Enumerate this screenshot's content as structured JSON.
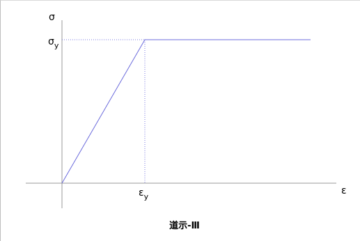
{
  "chart_data": {
    "type": "line",
    "title": "",
    "xlabel": "ε",
    "ylabel": "σ",
    "xlim": [
      0,
      3
    ],
    "ylim": [
      0,
      1
    ],
    "series": [
      {
        "values": [
          [
            0,
            0
          ],
          [
            1,
            1
          ],
          [
            3,
            1
          ]
        ],
        "color": "#6b6bdc"
      }
    ],
    "annotations": {
      "yield_stress": {
        "main": "σ",
        "sub": "y",
        "value": 1
      },
      "yield_strain": {
        "main": "ε",
        "sub": "y",
        "value": 1
      }
    },
    "caption": "道示-Ⅲ",
    "grid": false
  },
  "colors": {
    "axis": "#9a9a9a",
    "curve": "#6b6bdc",
    "guide": "#7a7ae0"
  }
}
